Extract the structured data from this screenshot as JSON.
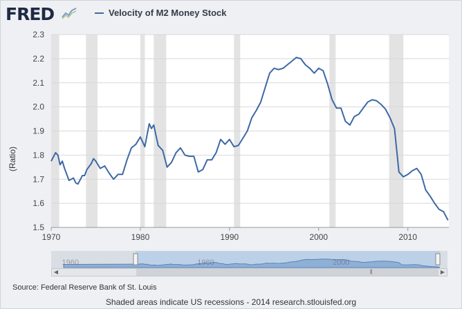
{
  "header": {
    "logo_text": "FRED",
    "series_title": "Velocity of M2 Money Stock",
    "series_color": "#3d68a5"
  },
  "chart_data": {
    "type": "line",
    "ylabel": "(Ratio)",
    "xlim": [
      1970,
      2014.6
    ],
    "ylim": [
      1.5,
      2.3
    ],
    "y_ticks": [
      "1.5",
      "1.6",
      "1.7",
      "1.8",
      "1.9",
      "2.0",
      "2.1",
      "2.2",
      "2.3"
    ],
    "x_ticks": [
      "1970",
      "1980",
      "1990",
      "2000",
      "2010"
    ],
    "grid": true,
    "legend_position": "top-left",
    "recessions": [
      [
        1970.0,
        1970.9
      ],
      [
        1973.9,
        1975.2
      ],
      [
        1980.0,
        1980.5
      ],
      [
        1981.5,
        1982.9
      ],
      [
        1990.5,
        1991.2
      ],
      [
        2001.2,
        2001.9
      ],
      [
        2007.9,
        2009.5
      ]
    ],
    "series": [
      {
        "name": "Velocity of M2 Money Stock",
        "x": [
          1970,
          1970.5,
          1970.75,
          1971,
          1971.25,
          1971.5,
          1972,
          1972.5,
          1972.75,
          1973,
          1973.5,
          1973.75,
          1974,
          1974.5,
          1974.75,
          1975,
          1975.5,
          1976,
          1976.5,
          1977,
          1977.5,
          1978,
          1978.5,
          1979,
          1979.5,
          1980,
          1980.5,
          1981,
          1981.25,
          1981.5,
          1982,
          1982.5,
          1983,
          1983.5,
          1984,
          1984.5,
          1985,
          1985.5,
          1986,
          1986.5,
          1987,
          1987.5,
          1988,
          1988.5,
          1989,
          1989.5,
          1990,
          1990.5,
          1991,
          1991.5,
          1992,
          1992.5,
          1993,
          1993.5,
          1994,
          1994.5,
          1995,
          1995.5,
          1996,
          1996.5,
          1997,
          1997.5,
          1998,
          1998.5,
          1999,
          1999.5,
          2000,
          2000.5,
          2001,
          2001.5,
          2002,
          2002.5,
          2003,
          2003.5,
          2004,
          2004.5,
          2005,
          2005.5,
          2006,
          2006.5,
          2007,
          2007.5,
          2008,
          2008.5,
          2009,
          2009.5,
          2010,
          2010.5,
          2011,
          2011.5,
          2012,
          2012.5,
          2013,
          2013.5,
          2014,
          2014.5
        ],
        "y": [
          1.775,
          1.81,
          1.8,
          1.76,
          1.775,
          1.745,
          1.695,
          1.705,
          1.685,
          1.68,
          1.715,
          1.715,
          1.74,
          1.765,
          1.785,
          1.775,
          1.745,
          1.755,
          1.725,
          1.7,
          1.72,
          1.72,
          1.78,
          1.83,
          1.845,
          1.875,
          1.835,
          1.93,
          1.91,
          1.925,
          1.84,
          1.82,
          1.75,
          1.77,
          1.81,
          1.83,
          1.8,
          1.795,
          1.795,
          1.73,
          1.74,
          1.78,
          1.78,
          1.81,
          1.865,
          1.845,
          1.865,
          1.835,
          1.84,
          1.87,
          1.9,
          1.955,
          1.985,
          2.02,
          2.08,
          2.14,
          2.16,
          2.155,
          2.16,
          2.175,
          2.19,
          2.205,
          2.2,
          2.175,
          2.16,
          2.14,
          2.16,
          2.15,
          2.095,
          2.03,
          1.995,
          1.995,
          1.94,
          1.925,
          1.96,
          1.97,
          1.995,
          2.02,
          2.03,
          2.025,
          2.01,
          1.99,
          1.955,
          1.91,
          1.73,
          1.71,
          1.72,
          1.735,
          1.745,
          1.72,
          1.655,
          1.63,
          1.6,
          1.575,
          1.565,
          1.53
        ]
      }
    ]
  },
  "navigator": {
    "labels": [
      "1960",
      "1980",
      "2000"
    ]
  },
  "footer": {
    "source": "Source: Federal Reserve Bank of St. Louis",
    "note": "Shaded areas indicate US recessions - 2014 research.stlouisfed.org"
  }
}
